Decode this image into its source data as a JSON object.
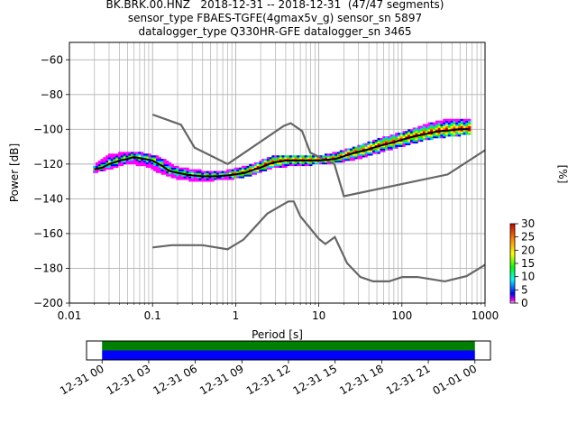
{
  "title": {
    "line1": "BK.BRK.00.HNZ   2018-12-31 -- 2018-12-31  (47/47 segments)",
    "line2": "sensor_type FBAES-TGFE(4gmax5v_g) sensor_sn 5897",
    "line3": "datalogger_type Q330HR-GFE datalogger_sn 3465"
  },
  "colors": {
    "nm_lines": "#666666",
    "mode_line": "#000000",
    "grid": "#b0b0b0",
    "coverage_data": "#0000ff",
    "coverage_segments": "#008000"
  },
  "chart_data": [
    {
      "type": "heatmap",
      "subtype": "probabilistic_power_spectral_density",
      "xlabel": "Period [s]",
      "ylabel": "Power [dB]",
      "xscale": "log",
      "xlim": [
        0.01,
        1000
      ],
      "ylim": [
        -200,
        -50
      ],
      "grid": true,
      "x_ticks": [
        0.01,
        0.1,
        1,
        10,
        100,
        1000
      ],
      "x_tick_labels": [
        "0.01",
        "0.1",
        "1",
        "10",
        "100",
        "1000"
      ],
      "y_ticks": [
        -200,
        -180,
        -160,
        -140,
        -120,
        -100,
        -80,
        -60
      ],
      "y_tick_labels": [
        "−200",
        "−180",
        "−160",
        "−140",
        "−120",
        "−100",
        "−80",
        "−60"
      ],
      "mode_curve": {
        "x": [
          0.02,
          0.025,
          0.03,
          0.04,
          0.05,
          0.06,
          0.08,
          0.1,
          0.13,
          0.16,
          0.2,
          0.25,
          0.3,
          0.4,
          0.5,
          0.6,
          0.8,
          1,
          1.3,
          1.6,
          2,
          2.5,
          3,
          4,
          5,
          6,
          8,
          10,
          13,
          16,
          20,
          25,
          30,
          40,
          50,
          60,
          80,
          100,
          130,
          160,
          200,
          250,
          300,
          400,
          500,
          650
        ],
        "y": [
          -123,
          -122,
          -120,
          -118,
          -117,
          -116,
          -117,
          -118,
          -121,
          -124,
          -125,
          -126,
          -126.5,
          -127,
          -127,
          -127,
          -126.5,
          -126,
          -125,
          -123.5,
          -122,
          -120,
          -119,
          -118,
          -118,
          -118,
          -118,
          -118,
          -117.5,
          -117,
          -115.5,
          -114,
          -113,
          -111.5,
          -110,
          -109,
          -107.5,
          -106,
          -104.5,
          -103.5,
          -102.5,
          -101.5,
          -101,
          -100.5,
          -100,
          -100
        ]
      },
      "spread_percent": [
        {
          "x": 0.02,
          "lo": -125,
          "hi": -121
        },
        {
          "x": 0.03,
          "lo": -123,
          "hi": -115
        },
        {
          "x": 0.05,
          "lo": -120,
          "hi": -113
        },
        {
          "x": 0.08,
          "lo": -121,
          "hi": -114
        },
        {
          "x": 0.12,
          "lo": -125,
          "hi": -116
        },
        {
          "x": 0.2,
          "lo": -129,
          "hi": -122
        },
        {
          "x": 0.4,
          "lo": -130,
          "hi": -124
        },
        {
          "x": 0.8,
          "lo": -129,
          "hi": -124
        },
        {
          "x": 1.5,
          "lo": -127,
          "hi": -121
        },
        {
          "x": 3,
          "lo": -122,
          "hi": -115
        },
        {
          "x": 6,
          "lo": -121,
          "hi": -115
        },
        {
          "x": 12,
          "lo": -120,
          "hi": -115
        },
        {
          "x": 25,
          "lo": -118,
          "hi": -111
        },
        {
          "x": 50,
          "lo": -114,
          "hi": -106
        },
        {
          "x": 100,
          "lo": -110,
          "hi": -102
        },
        {
          "x": 200,
          "lo": -106,
          "hi": -97
        },
        {
          "x": 400,
          "lo": -104,
          "hi": -94
        },
        {
          "x": 650,
          "lo": -103,
          "hi": -94
        }
      ],
      "noise_models": [
        {
          "x": [
            0.1,
            0.22,
            0.32,
            0.8,
            3.8,
            4.6,
            6.3,
            7.9,
            15.4,
            20,
            354.8,
            1000
          ],
          "y": [
            -91.5,
            -97.4,
            -110.5,
            -120,
            -98,
            -96.5,
            -101,
            -113.5,
            -120,
            -138.5,
            -126,
            -112
          ]
        },
        {
          "x": [
            0.1,
            0.17,
            0.4,
            0.8,
            1.24,
            2.4,
            4.3,
            5,
            6,
            10,
            12,
            15.6,
            21.9,
            31.6,
            45,
            70,
            101,
            154,
            328,
            600,
            1000
          ],
          "y": [
            -168,
            -166.7,
            -166.7,
            -169,
            -163.5,
            -148.5,
            -141.5,
            -141.5,
            -150,
            -163,
            -166,
            -162,
            -177,
            -185,
            -187.5,
            -187.5,
            -185,
            -185,
            -187.5,
            -184.5,
            -178
          ]
        }
      ],
      "colorbar": {
        "label": "[%]",
        "range": [
          0,
          30
        ],
        "ticks": [
          0,
          5,
          10,
          15,
          20,
          25,
          30
        ],
        "tick_labels": [
          "0",
          "5",
          "10",
          "15",
          "20",
          "25",
          "30"
        ],
        "colormap": "pqlx"
      }
    },
    {
      "type": "bar",
      "subtype": "data_coverage",
      "x_tick_labels": [
        "12-31 00",
        "12-31 03",
        "12-31 06",
        "12-31 09",
        "12-31 12",
        "12-31 15",
        "12-31 18",
        "12-31 21",
        "01-01 00"
      ],
      "xlim_hours": [
        -1,
        25
      ],
      "coverage_hours": [
        0,
        24
      ]
    }
  ]
}
